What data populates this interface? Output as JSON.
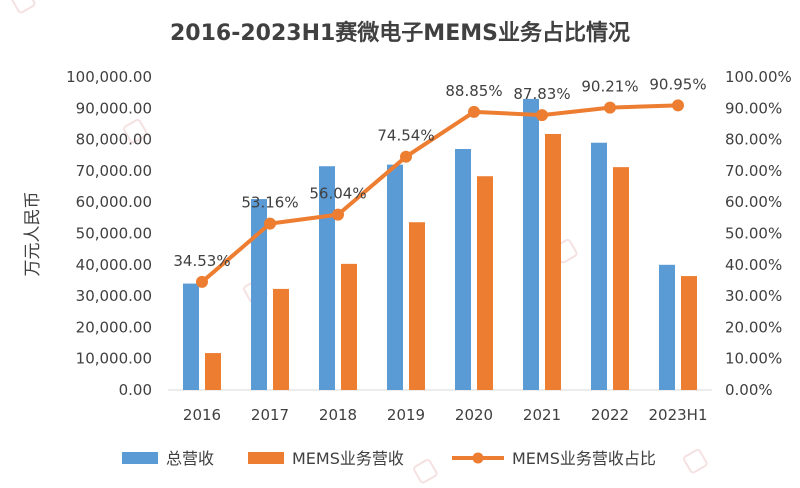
{
  "chart_data": {
    "type": "bar",
    "title": "2016-2023H1赛微电子MEMS业务占比情况",
    "xlabel": "",
    "ylabel": "万元人民币",
    "ylim": [
      0,
      100000
    ],
    "y2lim": [
      0,
      1
    ],
    "categories": [
      "2016",
      "2017",
      "2018",
      "2019",
      "2020",
      "2021",
      "2022",
      "2023H1"
    ],
    "y_ticks": [
      "0.00",
      "10,000.00",
      "20,000.00",
      "30,000.00",
      "40,000.00",
      "50,000.00",
      "60,000.00",
      "70,000.00",
      "80,000.00",
      "90,000.00",
      "100,000.00"
    ],
    "y2_ticks": [
      "0.00%",
      "10.00%",
      "20.00%",
      "30.00%",
      "40.00%",
      "50.00%",
      "60.00%",
      "70.00%",
      "80.00%",
      "90.00%",
      "100.00%"
    ],
    "series": [
      {
        "name": "总营收",
        "kind": "bar",
        "axis": "left",
        "color": "#5b9bd5",
        "values": [
          34000,
          61000,
          71500,
          72000,
          77000,
          93000,
          79000,
          40000
        ]
      },
      {
        "name": "MEMS业务营收",
        "kind": "bar",
        "axis": "left",
        "color": "#ed7d31",
        "values": [
          11800,
          32300,
          40300,
          53600,
          68300,
          81800,
          71200,
          36400
        ]
      },
      {
        "name": "MEMS业务营收占比",
        "kind": "line",
        "axis": "right",
        "color": "#ed7d31",
        "values": [
          0.3453,
          0.5316,
          0.5604,
          0.7454,
          0.8885,
          0.8783,
          0.9021,
          0.9095
        ],
        "labels": [
          "34.53%",
          "53.16%",
          "56.04%",
          "74.54%",
          "88.85%",
          "87.83%",
          "90.21%",
          "90.95%"
        ]
      }
    ],
    "legend": "bottom",
    "grid": false
  }
}
